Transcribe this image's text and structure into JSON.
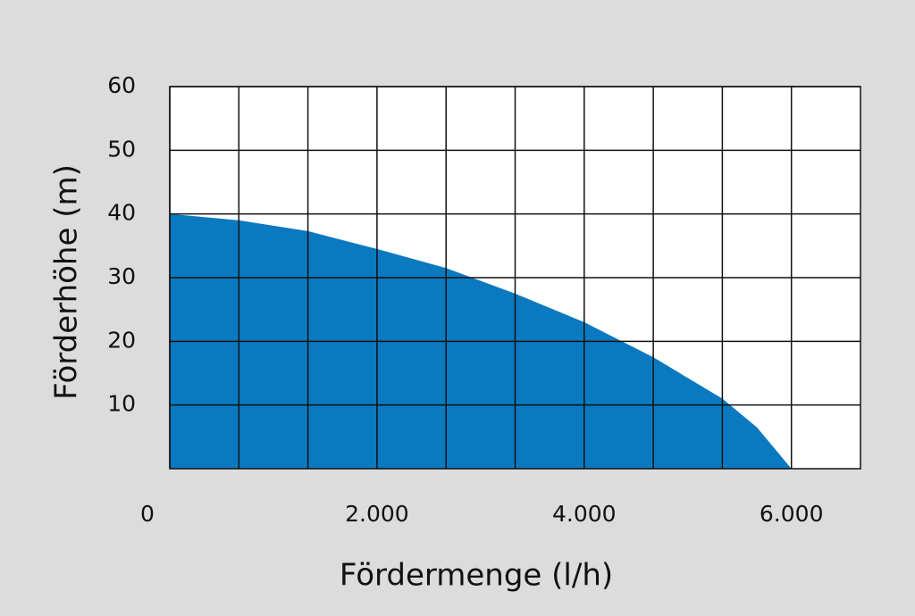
{
  "chart_data": {
    "type": "area",
    "xlabel": "Fördermenge (l/h)",
    "ylabel": "Förderhöhe (m)",
    "x": [
      0,
      666.67,
      1333.33,
      2000,
      2666.67,
      3333.33,
      4000,
      4666.67,
      5333.33,
      5666.67,
      6000
    ],
    "values": [
      40,
      39,
      37.3,
      34.5,
      31.5,
      27.5,
      23,
      17.5,
      11,
      6.5,
      0
    ],
    "color": "#0a79c0",
    "xlim": [
      0,
      6666.67
    ],
    "xticks": [
      0,
      {
        "value": 2000,
        "label": "2.000"
      },
      {
        "value": 4000,
        "label": "4.000"
      },
      {
        "value": 6000,
        "label": "6.000"
      }
    ],
    "x_minor_ticks": [
      666.67,
      1333.33,
      2666.67,
      3333.33,
      4666.67,
      5333.33
    ],
    "ylim": [
      0,
      60
    ],
    "yticks": [
      10,
      20,
      30,
      40,
      50,
      60
    ],
    "grid": true
  }
}
